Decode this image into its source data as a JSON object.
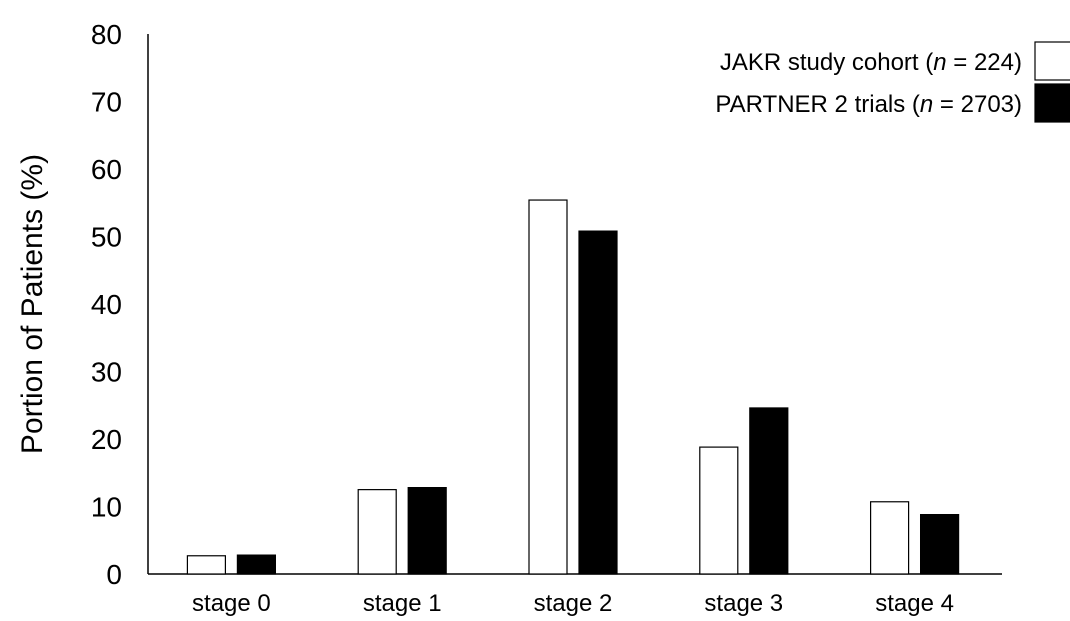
{
  "chart_data": {
    "type": "bar",
    "title": "",
    "xlabel": "",
    "ylabel": "Portion of Patients (%)",
    "ylim": [
      0,
      80
    ],
    "yticks": [
      0,
      10,
      20,
      30,
      40,
      50,
      60,
      70,
      80
    ],
    "categories": [
      "stage 0",
      "stage 1",
      "stage 2",
      "stage 3",
      "stage 4"
    ],
    "series": [
      {
        "name": "JAKR study cohort (n = 224)",
        "legend_prefix": "JAKR study cohort (",
        "legend_italic": "n",
        "legend_suffix": " = 224)",
        "fill": "#ffffff",
        "values": [
          2.7,
          12.5,
          55.4,
          18.8,
          10.7
        ]
      },
      {
        "name": "PARTNER 2 trials (n = 2703)",
        "legend_prefix": "PARTNER 2 trials (",
        "legend_italic": "n",
        "legend_suffix": " = 2703)",
        "fill": "#000000",
        "values": [
          2.8,
          12.8,
          50.8,
          24.6,
          8.8
        ]
      }
    ],
    "legend_position": "top-right",
    "grid": false
  }
}
